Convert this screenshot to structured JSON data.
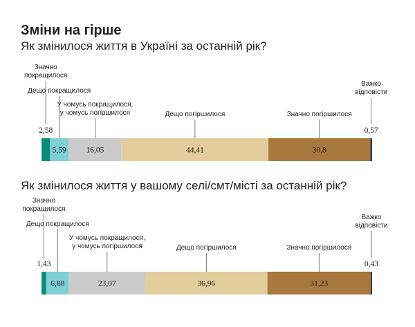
{
  "title": "Зміни на гірше",
  "chart_data": [
    {
      "type": "stacked-bar",
      "title": "Як змінилося життя в Україні за останній рік?",
      "series": [
        {
          "name": "Значно\nпокращилося",
          "color": "#0d8b79",
          "values": [
            2.58
          ],
          "value_labels": [
            "2,58"
          ]
        },
        {
          "name": "Дещо покращилося",
          "color": "#7fd0d5",
          "values": [
            5.59
          ],
          "value_labels": [
            "5,59"
          ]
        },
        {
          "name": "У чомусь покращилося,\nу чомусь погіршилося",
          "color": "#cbcbcb",
          "values": [
            16.05
          ],
          "value_labels": [
            "16,05"
          ]
        },
        {
          "name": "Дещо погіршилося",
          "color": "#e4cd9c",
          "values": [
            44.41
          ],
          "value_labels": [
            "44,41"
          ]
        },
        {
          "name": "Значно погіршилося",
          "color": "#a8783f",
          "values": [
            30.8
          ],
          "value_labels": [
            "30,8"
          ]
        },
        {
          "name": "Важко\nвідповісти",
          "color": "#3b3b4b",
          "values": [
            0.57
          ],
          "value_labels": [
            "0,57"
          ]
        }
      ]
    },
    {
      "type": "stacked-bar",
      "title": "Як змінилося життя у вашому селі/смт/місті за останній рік?",
      "series": [
        {
          "name": "Значно\nпокращилося",
          "color": "#0d8b79",
          "values": [
            1.43
          ],
          "value_labels": [
            "1,43"
          ]
        },
        {
          "name": "Дещо покращилося",
          "color": "#7fd0d5",
          "values": [
            6.88
          ],
          "value_labels": [
            "6,88"
          ]
        },
        {
          "name": "У чомусь покращилося,\nу чомусь погіршилося",
          "color": "#cbcbcb",
          "values": [
            23.07
          ],
          "value_labels": [
            "23,07"
          ]
        },
        {
          "name": "Дещо погіршилося",
          "color": "#e4cd9c",
          "values": [
            36.96
          ],
          "value_labels": [
            "36,96"
          ]
        },
        {
          "name": "Значно погіршилося",
          "color": "#a8783f",
          "values": [
            31.23
          ],
          "value_labels": [
            "31,23"
          ]
        },
        {
          "name": "Важко\nвідповісти",
          "color": "#3b3b4b",
          "values": [
            0.43
          ],
          "value_labels": [
            "0,43"
          ]
        }
      ]
    }
  ]
}
